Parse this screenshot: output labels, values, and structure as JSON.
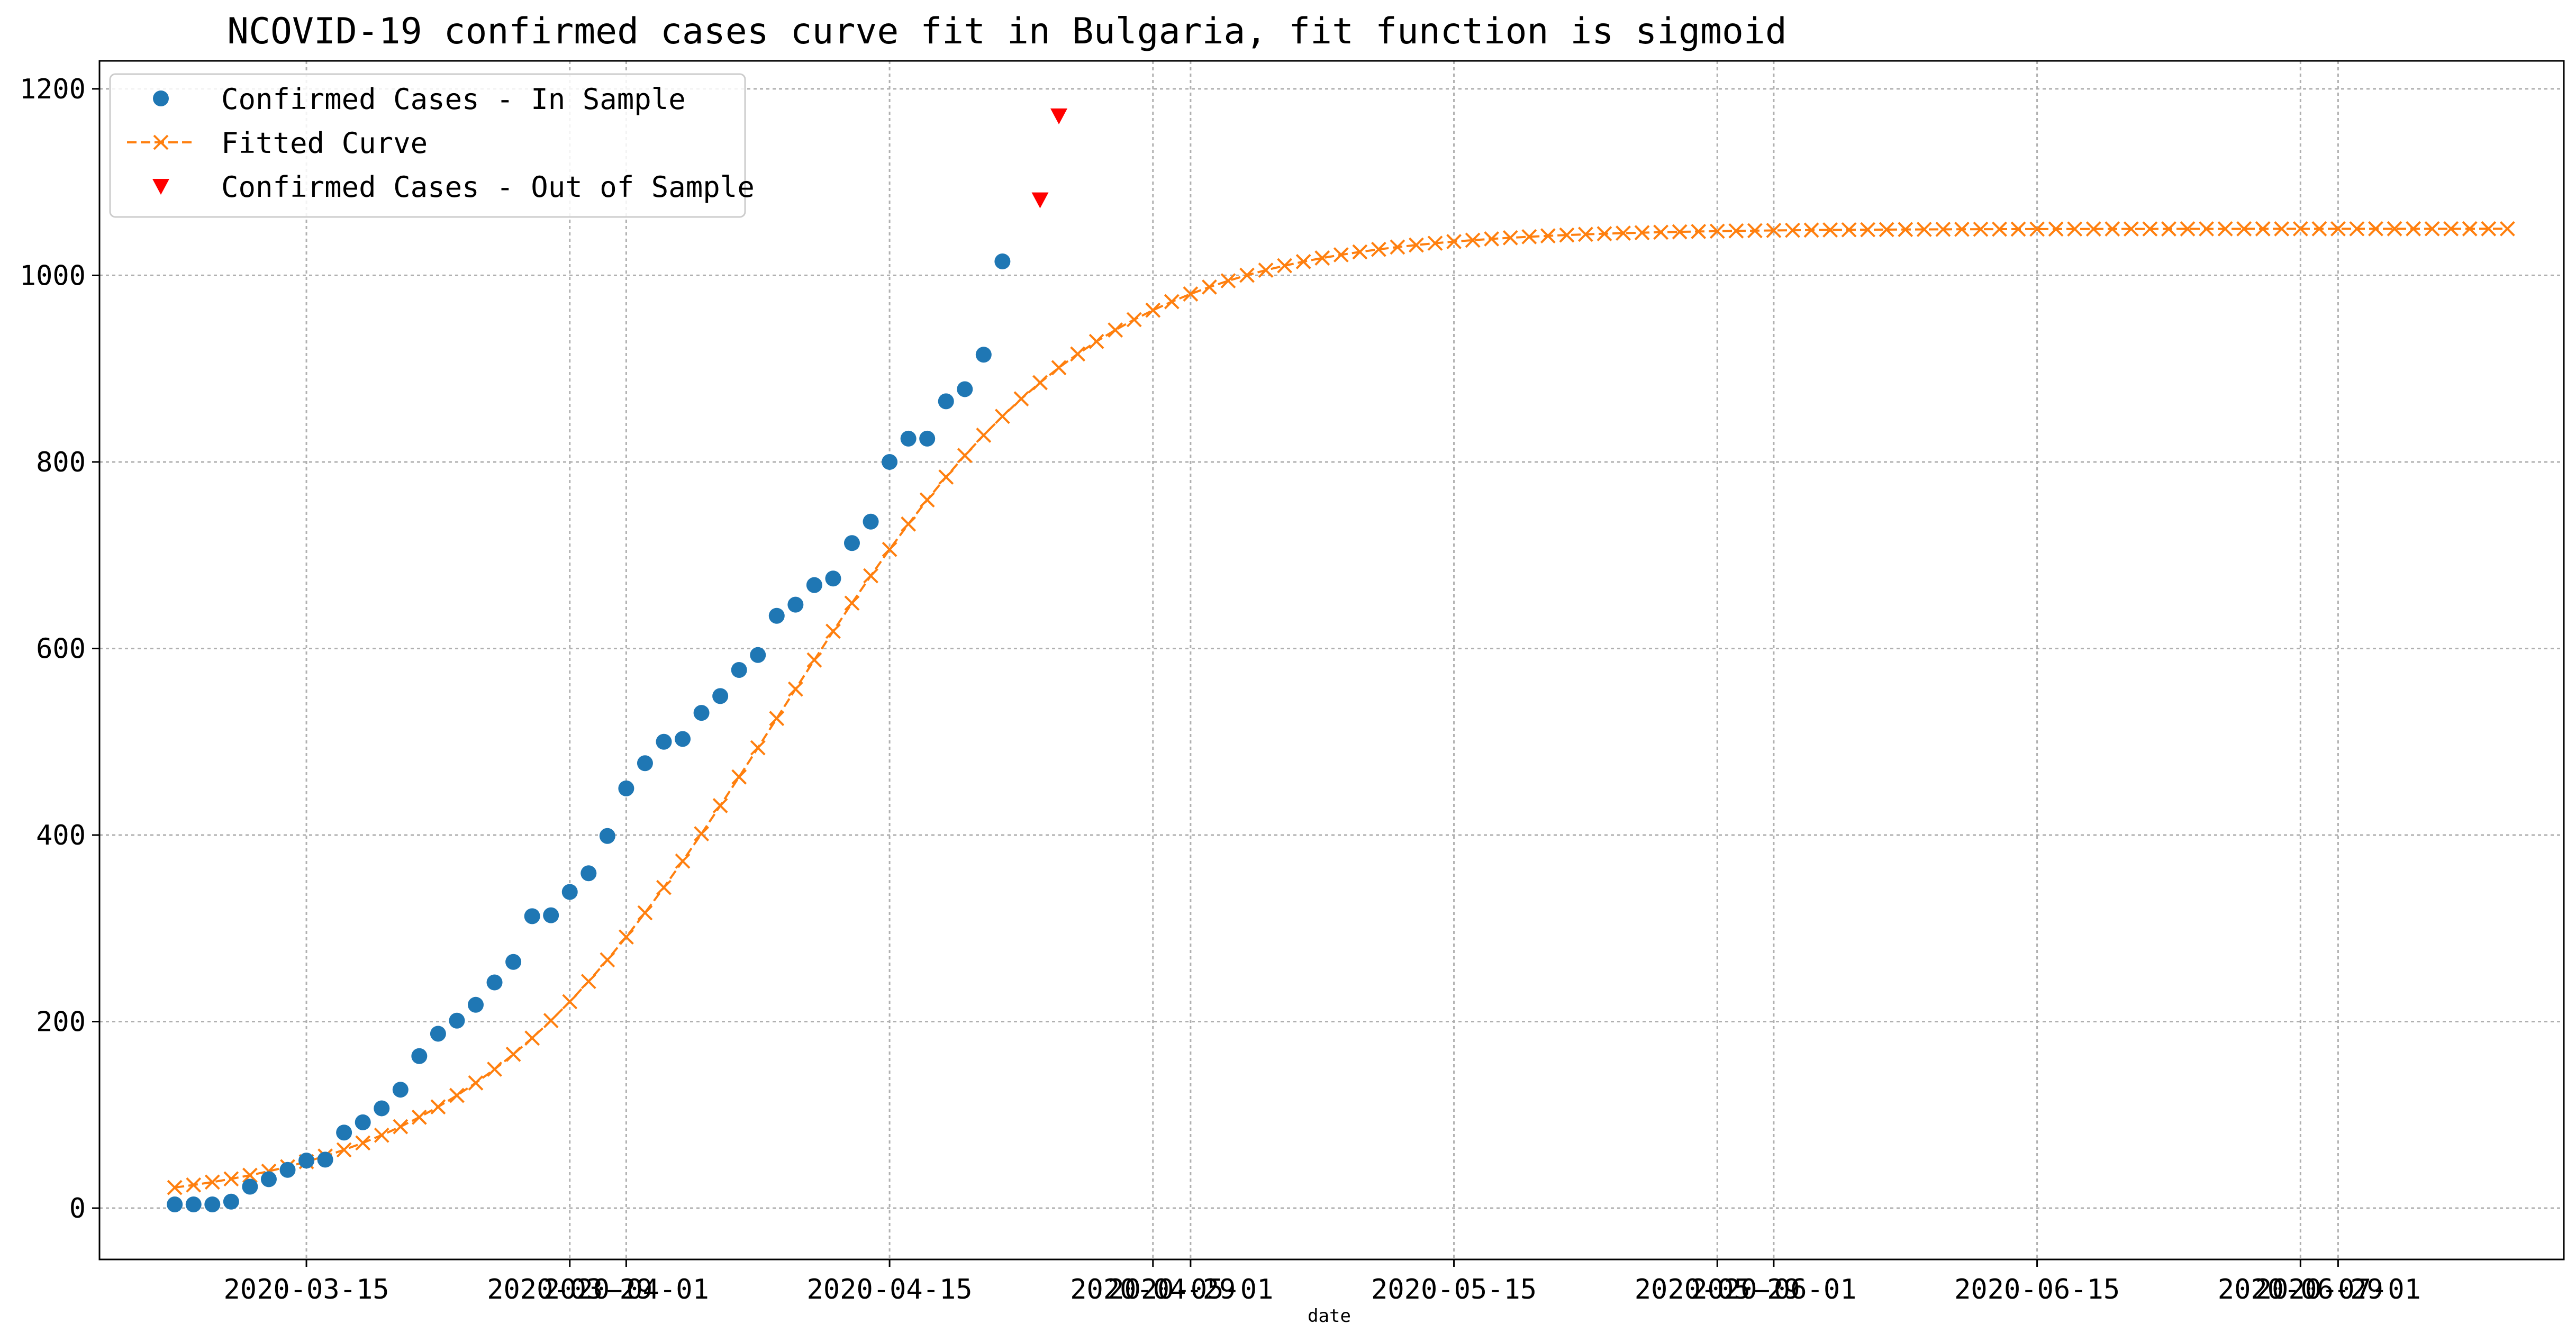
{
  "chart_data": {
    "type": "scatter",
    "title": "NCOVID-19 confirmed cases curve fit in Bulgaria, fit function is sigmoid",
    "xlabel": "date",
    "ylabel": "",
    "ylim": [
      -55,
      1230
    ],
    "xlim": [
      "2020-03-04",
      "2020-07-13"
    ],
    "grid": true,
    "legend_position": "top-left",
    "x_ticks": [
      {
        "date": "2020-03-15",
        "label": "2020-03-15"
      },
      {
        "date": "2020-03-29",
        "label": "2020-03-29"
      },
      {
        "date": "2020-04-01",
        "label": "2020-04-01"
      },
      {
        "date": "2020-04-15",
        "label": "2020-04-15"
      },
      {
        "date": "2020-04-29",
        "label": "2020-04-29"
      },
      {
        "date": "2020-05-01",
        "label": "2020-05-01"
      },
      {
        "date": "2020-05-15",
        "label": "2020-05-15"
      },
      {
        "date": "2020-05-29",
        "label": "2020-05-29"
      },
      {
        "date": "2020-06-01",
        "label": "2020-06-01"
      },
      {
        "date": "2020-06-15",
        "label": "2020-06-15"
      },
      {
        "date": "2020-06-29",
        "label": "2020-06-29"
      },
      {
        "date": "2020-07-01",
        "label": "2020-07-01"
      }
    ],
    "y_ticks": [
      0,
      200,
      400,
      600,
      800,
      1000,
      1200
    ],
    "series": [
      {
        "name": "Confirmed Cases - In Sample",
        "marker": "circle",
        "color": "#1f77b4",
        "x_start": "2020-03-08",
        "values": [
          4,
          4,
          4,
          7,
          23,
          31,
          41,
          51,
          52,
          81,
          92,
          107,
          127,
          163,
          187,
          201,
          218,
          242,
          264,
          313,
          314,
          339,
          359,
          399,
          450,
          477,
          500,
          503,
          531,
          549,
          577,
          593,
          635,
          647,
          668,
          675,
          713,
          736,
          800,
          825,
          825,
          865,
          878,
          915,
          1015
        ]
      },
      {
        "name": "Fitted Curve",
        "marker": "x",
        "line": "dashed",
        "color": "#ff7f0e",
        "x_start": "2020-03-08",
        "x_end": "2020-07-10",
        "sigmoid": {
          "L": 1050,
          "k": 0.12,
          "x0": 32,
          "offset": 0
        }
      },
      {
        "name": "Confirmed Cases - Out of Sample",
        "marker": "triangle-down",
        "color": "#ff0000",
        "x": [
          "2020-04-23",
          "2020-04-24"
        ],
        "values": [
          1081,
          1171
        ]
      }
    ]
  }
}
